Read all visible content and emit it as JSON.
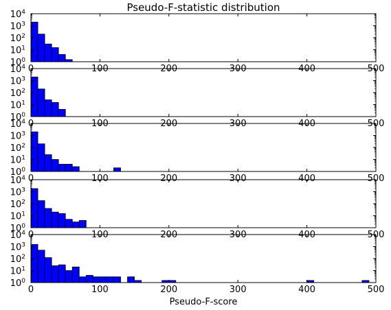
{
  "figure": {
    "title": "Pseudo-F-statistic distribution",
    "xlabel": "Pseudo-F-score"
  },
  "chart_data": [
    {
      "type": "bar",
      "yscale": "log",
      "xlim": [
        0,
        500
      ],
      "ylim": [
        1,
        10000
      ],
      "bin_width": 10,
      "xticks": [
        "0",
        "100",
        "200",
        "300",
        "400",
        "500"
      ],
      "bins": [
        {
          "x0": 0,
          "count": 2000
        },
        {
          "x0": 10,
          "count": 200
        },
        {
          "x0": 20,
          "count": 30
        },
        {
          "x0": 30,
          "count": 15
        },
        {
          "x0": 40,
          "count": 4
        },
        {
          "x0": 50,
          "count": 1.5
        }
      ]
    },
    {
      "type": "bar",
      "yscale": "log",
      "xlim": [
        0,
        500
      ],
      "ylim": [
        1,
        10000
      ],
      "bin_width": 10,
      "xticks": [
        "0",
        "100",
        "200",
        "300",
        "400",
        "500"
      ],
      "bins": [
        {
          "x0": 0,
          "count": 2000
        },
        {
          "x0": 10,
          "count": 200
        },
        {
          "x0": 20,
          "count": 25
        },
        {
          "x0": 30,
          "count": 15
        },
        {
          "x0": 40,
          "count": 4
        }
      ]
    },
    {
      "type": "bar",
      "yscale": "log",
      "xlim": [
        0,
        500
      ],
      "ylim": [
        1,
        10000
      ],
      "bin_width": 10,
      "xticks": [
        "0",
        "100",
        "200",
        "300",
        "400",
        "500"
      ],
      "bins": [
        {
          "x0": 0,
          "count": 2000
        },
        {
          "x0": 10,
          "count": 200
        },
        {
          "x0": 20,
          "count": 25
        },
        {
          "x0": 30,
          "count": 10
        },
        {
          "x0": 40,
          "count": 4
        },
        {
          "x0": 50,
          "count": 4
        },
        {
          "x0": 60,
          "count": 2.5
        },
        {
          "x0": 120,
          "count": 2
        }
      ]
    },
    {
      "type": "bar",
      "yscale": "log",
      "xlim": [
        0,
        500
      ],
      "ylim": [
        1,
        10000
      ],
      "bin_width": 10,
      "xticks": [
        "0",
        "100",
        "200",
        "300",
        "400",
        "500"
      ],
      "bins": [
        {
          "x0": 0,
          "count": 1800
        },
        {
          "x0": 10,
          "count": 180
        },
        {
          "x0": 20,
          "count": 40
        },
        {
          "x0": 30,
          "count": 20
        },
        {
          "x0": 40,
          "count": 15
        },
        {
          "x0": 50,
          "count": 5
        },
        {
          "x0": 60,
          "count": 3
        },
        {
          "x0": 70,
          "count": 4
        }
      ]
    },
    {
      "type": "bar",
      "yscale": "log",
      "xlim": [
        0,
        500
      ],
      "ylim": [
        1,
        10000
      ],
      "bin_width": 10,
      "xticks": [
        "0",
        "100",
        "200",
        "300",
        "400",
        "500"
      ],
      "bins": [
        {
          "x0": 0,
          "count": 1500
        },
        {
          "x0": 10,
          "count": 500
        },
        {
          "x0": 20,
          "count": 120
        },
        {
          "x0": 30,
          "count": 25
        },
        {
          "x0": 40,
          "count": 30
        },
        {
          "x0": 50,
          "count": 10
        },
        {
          "x0": 60,
          "count": 20
        },
        {
          "x0": 70,
          "count": 3
        },
        {
          "x0": 80,
          "count": 4
        },
        {
          "x0": 90,
          "count": 3
        },
        {
          "x0": 100,
          "count": 3
        },
        {
          "x0": 110,
          "count": 3
        },
        {
          "x0": 120,
          "count": 3
        },
        {
          "x0": 140,
          "count": 3
        },
        {
          "x0": 150,
          "count": 1.5
        },
        {
          "x0": 190,
          "count": 1.5
        },
        {
          "x0": 200,
          "count": 1.5
        },
        {
          "x0": 400,
          "count": 1.5
        },
        {
          "x0": 480,
          "count": 1.5
        }
      ]
    }
  ]
}
